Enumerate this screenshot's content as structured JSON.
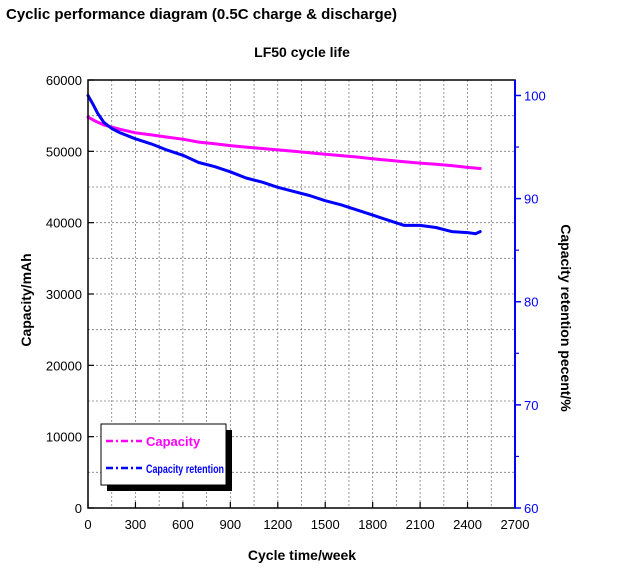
{
  "page": {
    "heading": "Cyclic performance diagram (0.5C charge & discharge)"
  },
  "colors": {
    "capacity": "#ff00ff",
    "retention": "#0000ff",
    "right_axis": "#0000ff",
    "frame": "#000000",
    "grid": "#7f7f7f"
  },
  "chart_data": {
    "type": "line",
    "title": "LF50 cycle life",
    "xlabel": "Cycle time/week",
    "ylabel": "Capacity/mAh",
    "y2label": "Capacity retention pecent/%",
    "xlim": [
      0,
      2700
    ],
    "ylim": [
      0,
      60000
    ],
    "y2lim": [
      60,
      101.5
    ],
    "xticks": [
      0,
      300,
      600,
      900,
      1200,
      1500,
      1800,
      2100,
      2400,
      2700
    ],
    "yticks": [
      0,
      10000,
      20000,
      30000,
      40000,
      50000,
      60000
    ],
    "y2ticks": [
      60,
      70,
      80,
      90,
      100
    ],
    "grid": true,
    "legend_position": "bottom-left",
    "series": [
      {
        "name": "Capacity",
        "axis": "left",
        "x": [
          0,
          50,
          100,
          200,
          300,
          400,
          500,
          600,
          700,
          800,
          900,
          1000,
          1100,
          1200,
          1300,
          1400,
          1500,
          1600,
          1700,
          1800,
          1900,
          2000,
          2100,
          2200,
          2300,
          2400,
          2480
        ],
        "values": [
          54800,
          54200,
          53700,
          53100,
          52600,
          52300,
          52000,
          51700,
          51300,
          51050,
          50800,
          50600,
          50400,
          50200,
          50000,
          49800,
          49600,
          49400,
          49200,
          48950,
          48750,
          48550,
          48350,
          48200,
          48000,
          47750,
          47600
        ]
      },
      {
        "name": "Capacity retention",
        "axis": "right",
        "x": [
          0,
          30,
          60,
          100,
          150,
          200,
          300,
          400,
          500,
          600,
          700,
          800,
          900,
          1000,
          1100,
          1200,
          1300,
          1400,
          1500,
          1600,
          1700,
          1800,
          1900,
          2000,
          2100,
          2200,
          2300,
          2400,
          2450,
          2480
        ],
        "values": [
          100.0,
          99.2,
          98.3,
          97.4,
          96.8,
          96.4,
          95.8,
          95.3,
          94.7,
          94.2,
          93.5,
          93.1,
          92.6,
          92.0,
          91.6,
          91.1,
          90.7,
          90.3,
          89.8,
          89.4,
          88.9,
          88.4,
          87.9,
          87.4,
          87.4,
          87.2,
          86.8,
          86.7,
          86.6,
          86.8
        ]
      }
    ]
  }
}
